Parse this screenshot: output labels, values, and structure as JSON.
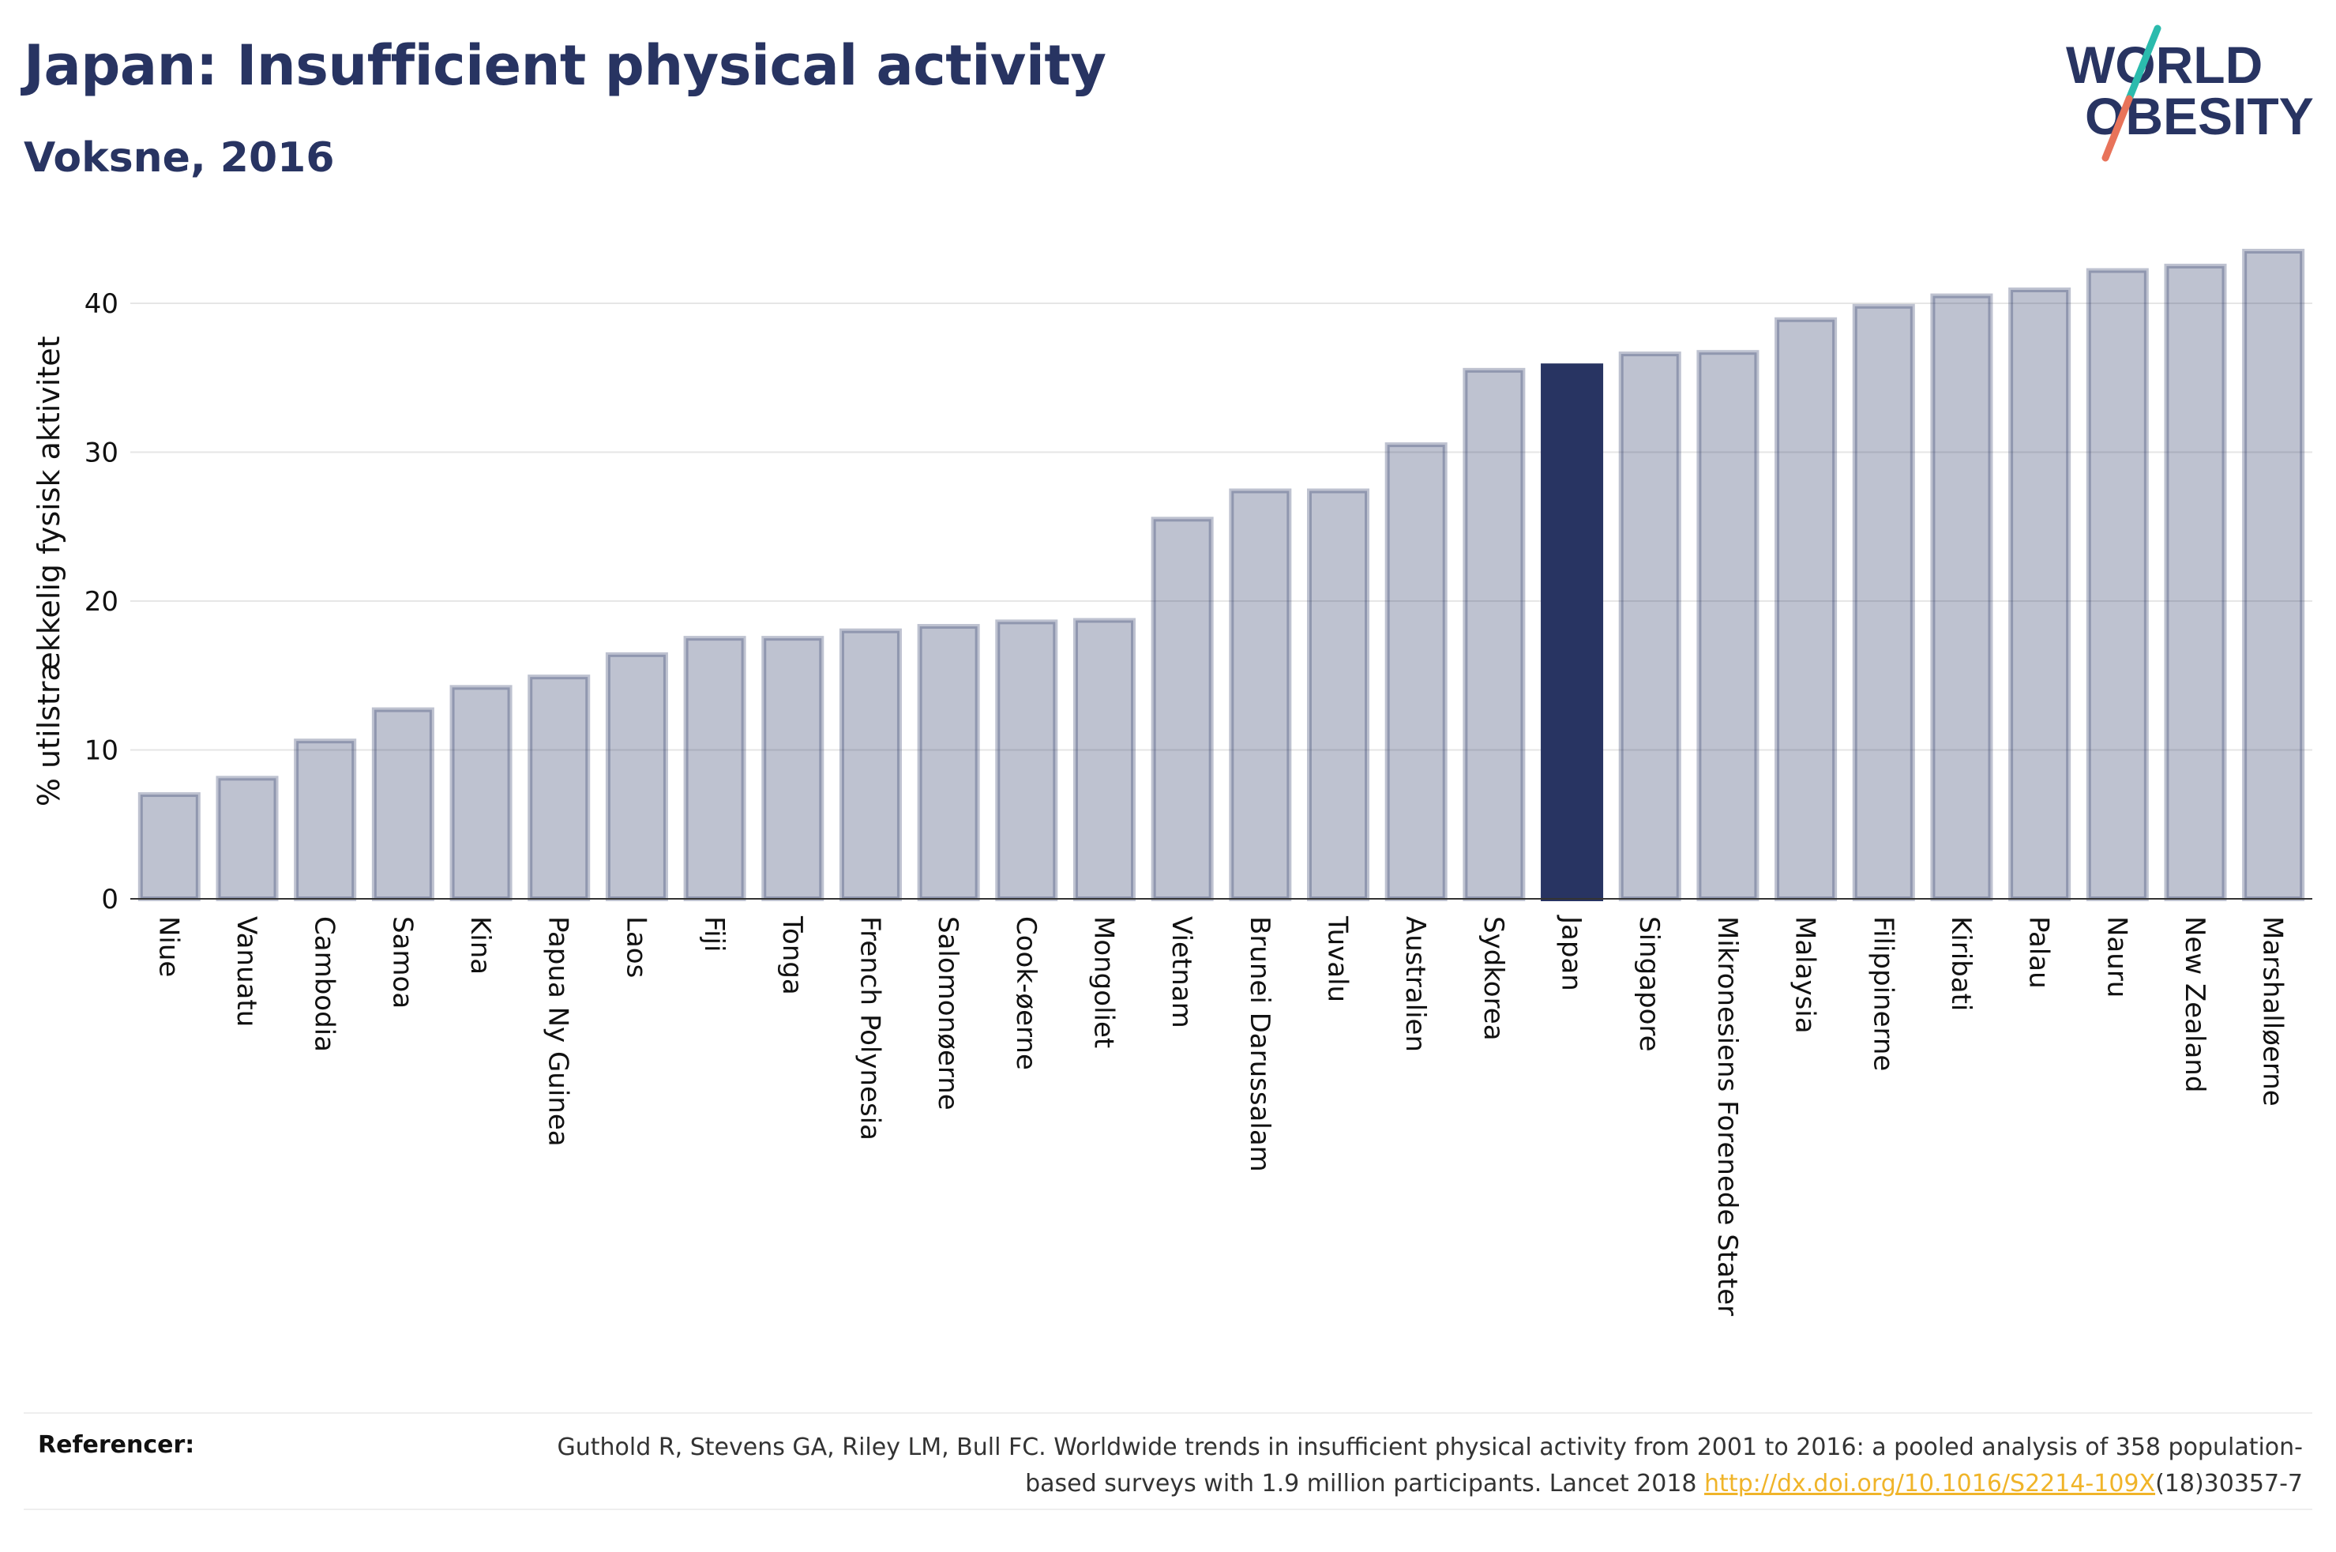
{
  "title": "Japan: Insufficient physical activity",
  "subtitle": "Voksne, 2016",
  "logo": {
    "line1": "WORLD",
    "line2": "OBESITY",
    "colors": {
      "text": "#283462",
      "slash_top": "#2bbbad",
      "slash_bottom": "#e8735a"
    }
  },
  "colors": {
    "bar": "#283462",
    "highlight": "#283462"
  },
  "chart_data": {
    "type": "bar",
    "ylabel": "% utilstrækkelig fysisk aktivitet",
    "xlabel": "",
    "ylim": [
      0,
      44
    ],
    "yticks": [
      0,
      10,
      20,
      30,
      40
    ],
    "grid": true,
    "highlight": "Japan",
    "categories": [
      "Niue",
      "Vanuatu",
      "Cambodia",
      "Samoa",
      "Kina",
      "Papua Ny Guinea",
      "Laos",
      "Fiji",
      "Tonga",
      "French Polynesia",
      "Salomonøerne",
      "Cook-øerne",
      "Mongoliet",
      "Vietnam",
      "Brunei Darussalam",
      "Tuvalu",
      "Australien",
      "Sydkorea",
      "Japan",
      "Singapore",
      "Mikronesiens Forenede Stater",
      "Malaysia",
      "Filippinerne",
      "Kiribati",
      "Palau",
      "Nauru",
      "New Zealand",
      "Marshalløerne"
    ],
    "values": [
      7.0,
      8.1,
      10.6,
      12.7,
      14.2,
      14.9,
      16.4,
      17.5,
      17.5,
      18.0,
      18.3,
      18.6,
      18.7,
      25.5,
      27.4,
      27.4,
      30.5,
      35.5,
      35.8,
      36.6,
      36.7,
      38.9,
      39.8,
      40.5,
      40.9,
      42.2,
      42.5,
      43.5
    ]
  },
  "references": {
    "label": "Referencer:",
    "text_before": "Guthold R, Stevens GA, Riley LM, Bull FC. Worldwide trends in insufficient physical activity from 2001 to 2016: a pooled analysis of 358 population-based surveys with 1.9 million participants. Lancet 2018 ",
    "link": "http://dx.doi.org/10.1016/S2214-109X",
    "text_after": "(18)30357-7"
  }
}
